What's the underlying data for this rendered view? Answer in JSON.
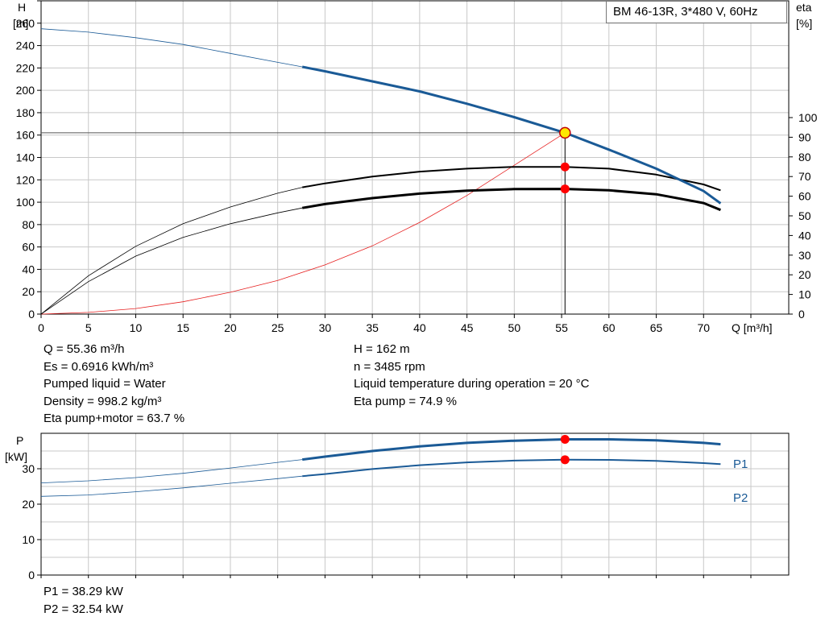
{
  "title": "BM 46-13R, 3*480 V, 60Hz",
  "axes": {
    "h_label": "H",
    "h_unit": "[m]",
    "eta_label": "eta",
    "eta_unit": "[%]",
    "q_label": "Q [m³/h]",
    "p_label": "P",
    "p_unit": "[kW]"
  },
  "info_left": [
    "Q = 55.36 m³/h",
    "Es = 0.6916 kWh/m³",
    "Pumped liquid = Water",
    "Density = 998.2 kg/m³",
    "Eta pump+motor = 63.7 %"
  ],
  "info_right": [
    "H = 162 m",
    "n = 3485 rpm",
    "Liquid temperature during operation = 20 °C",
    "Eta pump = 74.9 %"
  ],
  "info_bottom": [
    "P1 = 38.29 kW",
    "P2 = 32.54 kW"
  ],
  "colors": {
    "head": "#1a5a96",
    "eta": "#000000",
    "npsh": "#e62020",
    "power": "#1a5a96",
    "grid": "#c8c8c8",
    "duty_point": "#ff0000",
    "duty_point_head": "#ffe800"
  },
  "chart_data": [
    {
      "type": "line",
      "name": "performance-curves",
      "x_axis": {
        "label": "Q [m³/h]",
        "range": [
          0,
          79
        ],
        "ticks": [
          0,
          5,
          10,
          15,
          20,
          25,
          30,
          35,
          40,
          45,
          50,
          55,
          60,
          65,
          70
        ]
      },
      "y_left": {
        "label": "H [m]",
        "range": [
          0,
          280
        ],
        "ticks": [
          0,
          20,
          40,
          60,
          80,
          100,
          120,
          140,
          160,
          180,
          200,
          220,
          240,
          260
        ]
      },
      "y_right": {
        "label": "eta [%]",
        "range": [
          0,
          100
        ],
        "ticks": [
          0,
          10,
          20,
          30,
          40,
          50,
          60,
          70,
          80,
          90,
          100
        ]
      },
      "grid": true,
      "series": [
        {
          "axis": "left",
          "bold_from": 27.6,
          "x": [
            0,
            5,
            10,
            15,
            20,
            25,
            27.6,
            30,
            35,
            40,
            45,
            50,
            55.36,
            60,
            65,
            70,
            71.8
          ],
          "y": [
            255,
            252,
            247,
            241,
            233,
            225,
            221,
            217,
            208,
            199,
            188,
            176,
            162,
            147,
            130,
            110,
            99
          ]
        },
        {
          "axis": "right",
          "bold_from": 27.6,
          "x": [
            0,
            5,
            10,
            15,
            20,
            25,
            27.6,
            30,
            35,
            40,
            45,
            50,
            55.36,
            60,
            65,
            70,
            71.8
          ],
          "y": [
            0,
            19.5,
            34.5,
            46,
            54.5,
            61.5,
            64.5,
            66.5,
            70,
            72.5,
            74,
            74.9,
            74.9,
            74,
            71,
            66,
            63
          ]
        },
        {
          "axis": "right",
          "bold_from": 27.6,
          "x": [
            0,
            5,
            10,
            15,
            20,
            25,
            27.6,
            30,
            35,
            40,
            45,
            50,
            55.36,
            60,
            65,
            70,
            71.8
          ],
          "y": [
            0,
            16.5,
            29.5,
            39,
            46,
            51.5,
            54,
            56,
            59,
            61.3,
            62.8,
            63.6,
            63.7,
            63,
            61,
            56.5,
            53
          ]
        },
        {
          "axis": "left",
          "x": [
            0,
            5,
            10,
            15,
            20,
            25,
            30,
            35,
            40,
            45,
            50,
            55.36
          ],
          "y": [
            0,
            1.5,
            5,
            11,
            19.5,
            30,
            44,
            61,
            82,
            106,
            133,
            162
          ]
        }
      ],
      "duty_point": {
        "q": 55.36,
        "h": 162,
        "eta_pump": 74.9,
        "eta_total": 63.7
      }
    },
    {
      "type": "line",
      "name": "power-curves",
      "x_axis": {
        "range": [
          0,
          79
        ]
      },
      "y_left": {
        "label": "P [kW]",
        "range": [
          0,
          40
        ],
        "ticks": [
          0,
          10,
          20,
          30
        ]
      },
      "grid": true,
      "series": [
        {
          "name": "P1",
          "bold_from": 27.6,
          "x": [
            0,
            5,
            10,
            15,
            20,
            25,
            27.6,
            30,
            35,
            40,
            45,
            50,
            55.36,
            60,
            65,
            70,
            71.8
          ],
          "y": [
            26,
            26.6,
            27.5,
            28.7,
            30.2,
            31.8,
            32.6,
            33.4,
            35,
            36.3,
            37.3,
            37.9,
            38.29,
            38.3,
            38,
            37.3,
            36.9
          ]
        },
        {
          "name": "P2",
          "bold_from": 27.6,
          "x": [
            0,
            5,
            10,
            15,
            20,
            25,
            27.6,
            30,
            35,
            40,
            45,
            50,
            55.36,
            60,
            65,
            70,
            71.8
          ],
          "y": [
            22.2,
            22.6,
            23.5,
            24.6,
            25.9,
            27.2,
            27.9,
            28.5,
            29.9,
            31,
            31.8,
            32.3,
            32.54,
            32.5,
            32.2,
            31.6,
            31.3
          ]
        }
      ],
      "duty_point": {
        "q": 55.36,
        "p1": 38.29,
        "p2": 32.54
      }
    }
  ]
}
